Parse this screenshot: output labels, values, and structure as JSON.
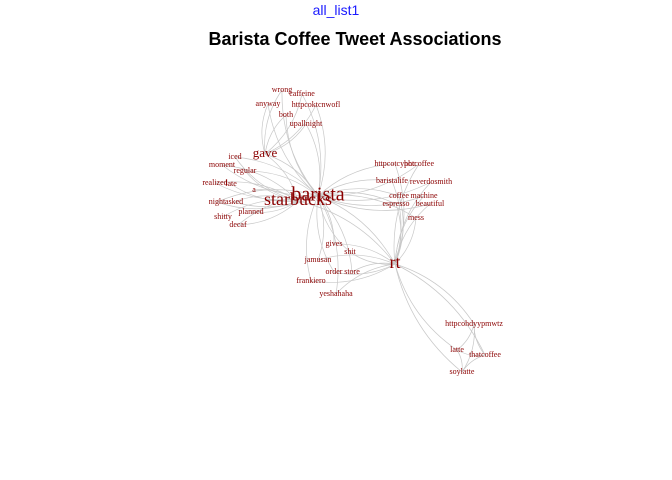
{
  "header": {
    "tab_label": "all_list1"
  },
  "chart_data": {
    "type": "network",
    "title": "Barista Coffee Tweet Associations",
    "colors": {
      "node_label": "#8b0000",
      "edge": "#c8c8c8",
      "tab_label": "#1a1aff",
      "title": "#000000"
    },
    "nodes": [
      {
        "id": "barista",
        "label": "barista",
        "weight": 5
      },
      {
        "id": "starbucks",
        "label": "starbucks",
        "weight": 4
      },
      {
        "id": "rt",
        "label": "rt",
        "weight": 4
      },
      {
        "id": "gave",
        "label": "gave",
        "weight": 3
      },
      {
        "id": "wrong",
        "label": "wrong",
        "weight": 1
      },
      {
        "id": "caffeine",
        "label": "caffeine",
        "weight": 1
      },
      {
        "id": "anyway",
        "label": "anyway",
        "weight": 1
      },
      {
        "id": "httpcoktcnwofl",
        "label": "httpcoktcnwofl",
        "weight": 1
      },
      {
        "id": "both",
        "label": "both",
        "weight": 1
      },
      {
        "id": "upallnight",
        "label": "upallnight",
        "weight": 1
      },
      {
        "id": "iced",
        "label": "iced",
        "weight": 1
      },
      {
        "id": "moment",
        "label": "moment",
        "weight": 1
      },
      {
        "id": "regular",
        "label": "regular",
        "weight": 1
      },
      {
        "id": "realized",
        "label": "realized",
        "weight": 1
      },
      {
        "id": "late",
        "label": "late",
        "weight": 1
      },
      {
        "id": "a",
        "label": "a",
        "weight": 1
      },
      {
        "id": "night",
        "label": "night",
        "weight": 1
      },
      {
        "id": "asked",
        "label": "asked",
        "weight": 1
      },
      {
        "id": "planned",
        "label": "planned",
        "weight": 1
      },
      {
        "id": "shitty",
        "label": "shitty",
        "weight": 1
      },
      {
        "id": "decaf",
        "label": "decaf",
        "weight": 1
      },
      {
        "id": "httpcoteyphc",
        "label": "httpcotcyphc",
        "weight": 1
      },
      {
        "id": "hotcoffee",
        "label": "hotcoffee",
        "weight": 1
      },
      {
        "id": "baristalife",
        "label": "baristalife",
        "weight": 1
      },
      {
        "id": "reverdosmith",
        "label": "reverdosmith",
        "weight": 1
      },
      {
        "id": "coffee",
        "label": "coffee",
        "weight": 1
      },
      {
        "id": "machine",
        "label": "machine",
        "weight": 1
      },
      {
        "id": "espresso",
        "label": "espresso",
        "weight": 1
      },
      {
        "id": "beautiful",
        "label": "beautiful",
        "weight": 1
      },
      {
        "id": "mess",
        "label": "mess",
        "weight": 1
      },
      {
        "id": "gives",
        "label": "gives",
        "weight": 1
      },
      {
        "id": "shit",
        "label": "shit",
        "weight": 1
      },
      {
        "id": "jamusan",
        "label": "jamusan",
        "weight": 1
      },
      {
        "id": "order",
        "label": "order",
        "weight": 1
      },
      {
        "id": "store",
        "label": "store",
        "weight": 1
      },
      {
        "id": "frankiero",
        "label": "frankiero",
        "weight": 1
      },
      {
        "id": "yeshahaha",
        "label": "yeshahaha",
        "weight": 1
      },
      {
        "id": "httpcohdyypmwtz",
        "label": "httpcohdyypmwtz",
        "weight": 1
      },
      {
        "id": "latte",
        "label": "latte",
        "weight": 1
      },
      {
        "id": "thatcoffee",
        "label": "thatcoffee",
        "weight": 1
      },
      {
        "id": "soylatte",
        "label": "soylatte",
        "weight": 1
      }
    ],
    "edges": [
      [
        "barista",
        "starbucks"
      ],
      [
        "barista",
        "rt"
      ],
      [
        "barista",
        "gave"
      ],
      [
        "starbucks",
        "rt"
      ],
      [
        "starbucks",
        "gave"
      ],
      [
        "gave",
        "wrong"
      ],
      [
        "gave",
        "caffeine"
      ],
      [
        "gave",
        "anyway"
      ],
      [
        "gave",
        "httpcoktcnwofl"
      ],
      [
        "gave",
        "both"
      ],
      [
        "gave",
        "upallnight"
      ],
      [
        "barista",
        "wrong"
      ],
      [
        "barista",
        "caffeine"
      ],
      [
        "barista",
        "anyway"
      ],
      [
        "barista",
        "httpcoktcnwofl"
      ],
      [
        "barista",
        "both"
      ],
      [
        "barista",
        "upallnight"
      ],
      [
        "starbucks",
        "iced"
      ],
      [
        "starbucks",
        "moment"
      ],
      [
        "starbucks",
        "regular"
      ],
      [
        "starbucks",
        "realized"
      ],
      [
        "starbucks",
        "late"
      ],
      [
        "starbucks",
        "a"
      ],
      [
        "starbucks",
        "night"
      ],
      [
        "starbucks",
        "asked"
      ],
      [
        "starbucks",
        "planned"
      ],
      [
        "starbucks",
        "shitty"
      ],
      [
        "starbucks",
        "decaf"
      ],
      [
        "barista",
        "iced"
      ],
      [
        "barista",
        "moment"
      ],
      [
        "barista",
        "regular"
      ],
      [
        "barista",
        "realized"
      ],
      [
        "barista",
        "night"
      ],
      [
        "barista",
        "asked"
      ],
      [
        "barista",
        "decaf"
      ],
      [
        "barista",
        "httpcoteyphc"
      ],
      [
        "barista",
        "hotcoffee"
      ],
      [
        "barista",
        "baristalife"
      ],
      [
        "barista",
        "reverdosmith"
      ],
      [
        "barista",
        "coffee"
      ],
      [
        "barista",
        "machine"
      ],
      [
        "barista",
        "espresso"
      ],
      [
        "barista",
        "beautiful"
      ],
      [
        "barista",
        "mess"
      ],
      [
        "rt",
        "httpcoteyphc"
      ],
      [
        "rt",
        "hotcoffee"
      ],
      [
        "rt",
        "baristalife"
      ],
      [
        "rt",
        "reverdosmith"
      ],
      [
        "rt",
        "coffee"
      ],
      [
        "rt",
        "machine"
      ],
      [
        "rt",
        "espresso"
      ],
      [
        "rt",
        "beautiful"
      ],
      [
        "rt",
        "mess"
      ],
      [
        "barista",
        "gives"
      ],
      [
        "barista",
        "shit"
      ],
      [
        "barista",
        "jamusan"
      ],
      [
        "barista",
        "order"
      ],
      [
        "barista",
        "store"
      ],
      [
        "barista",
        "frankiero"
      ],
      [
        "barista",
        "yeshahaha"
      ],
      [
        "rt",
        "gives"
      ],
      [
        "rt",
        "shit"
      ],
      [
        "rt",
        "jamusan"
      ],
      [
        "rt",
        "order"
      ],
      [
        "rt",
        "store"
      ],
      [
        "rt",
        "frankiero"
      ],
      [
        "rt",
        "yeshahaha"
      ],
      [
        "rt",
        "httpcohdyypmwtz"
      ],
      [
        "rt",
        "latte"
      ],
      [
        "rt",
        "thatcoffee"
      ],
      [
        "rt",
        "soylatte"
      ],
      [
        "httpcohdyypmwtz",
        "latte"
      ],
      [
        "httpcohdyypmwtz",
        "thatcoffee"
      ],
      [
        "httpcohdyypmwtz",
        "soylatte"
      ],
      [
        "latte",
        "thatcoffee"
      ],
      [
        "latte",
        "soylatte"
      ],
      [
        "thatcoffee",
        "soylatte"
      ]
    ]
  }
}
